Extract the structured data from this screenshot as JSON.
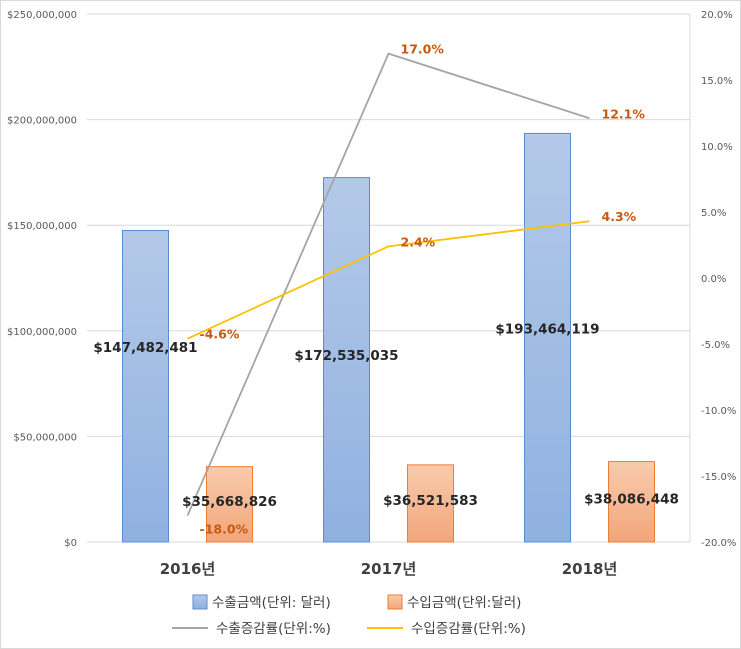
{
  "chart_data": {
    "type": "bar",
    "categories": [
      "2016년",
      "2017년",
      "2018년"
    ],
    "series": [
      {
        "name": "수출금액(단위: 달러)",
        "kind": "bar",
        "axis": "left",
        "color": "#8faadc",
        "values": [
          147482481,
          172535035,
          193464119
        ],
        "labels": [
          "$147,482,481",
          "$172,535,035",
          "$193,464,119"
        ]
      },
      {
        "name": "수입금액(단위:달러)",
        "kind": "bar",
        "axis": "left",
        "color": "#f4b183",
        "values": [
          35668826,
          36521583,
          38086448
        ],
        "labels": [
          "$35,668,826",
          "$36,521,583",
          "$38,086,448"
        ]
      },
      {
        "name": "수출증감률(단위:%)",
        "kind": "line",
        "axis": "right",
        "color": "#a5a5a5",
        "values": [
          -18.0,
          17.0,
          12.1
        ],
        "labels": [
          "-18.0%",
          "17.0%",
          "12.1%"
        ]
      },
      {
        "name": "수입증감률(단위:%)",
        "kind": "line",
        "axis": "right",
        "color": "#ffc000",
        "values": [
          -4.6,
          2.4,
          4.3
        ],
        "labels": [
          "-4.6%",
          "2.4%",
          "4.3%"
        ]
      }
    ],
    "ylim": [
      0,
      250000000
    ],
    "y_ticks": [
      "$0",
      "$50,000,000",
      "$100,000,000",
      "$150,000,000",
      "$200,000,000",
      "$250,000,000"
    ],
    "y2lim": [
      -20,
      20
    ],
    "y2_ticks": [
      "-20.0%",
      "-15.0%",
      "-10.0%",
      "-5.0%",
      "0.0%",
      "5.0%",
      "10.0%",
      "15.0%",
      "20.0%"
    ],
    "grid": true,
    "legend_position": "bottom"
  }
}
